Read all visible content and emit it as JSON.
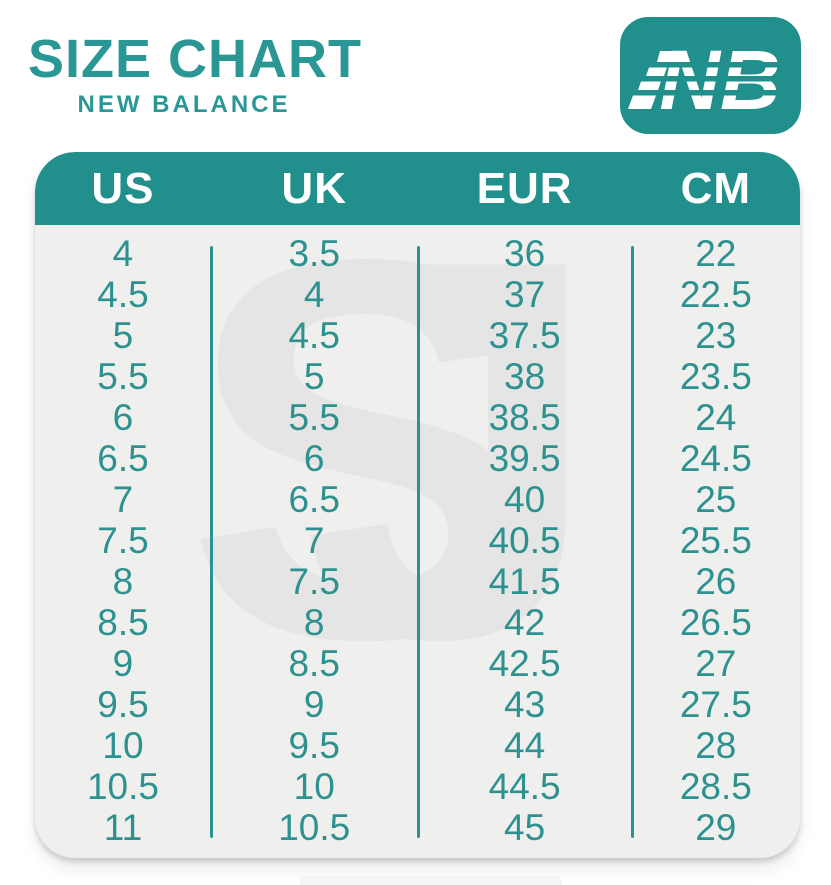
{
  "header": {
    "title": "SIZE CHART",
    "subtitle": "NEW BALANCE"
  },
  "logo": {
    "text": "NB"
  },
  "watermark": {
    "text": "SJ"
  },
  "colors": {
    "teal": "#21908d",
    "teal_text": "#2d928f",
    "title": "#2a9795",
    "table_bg": "#efefee",
    "header_text": "#ffffff",
    "watermark": "#e4e5e4"
  },
  "chart_data": {
    "type": "table",
    "title": "SIZE CHART",
    "subtitle": "NEW BALANCE",
    "columns": [
      "US",
      "UK",
      "EUR",
      "CM"
    ],
    "rows": [
      [
        "4",
        "3.5",
        "36",
        "22"
      ],
      [
        "4.5",
        "4",
        "37",
        "22.5"
      ],
      [
        "5",
        "4.5",
        "37.5",
        "23"
      ],
      [
        "5.5",
        "5",
        "38",
        "23.5"
      ],
      [
        "6",
        "5.5",
        "38.5",
        "24"
      ],
      [
        "6.5",
        "6",
        "39.5",
        "24.5"
      ],
      [
        "7",
        "6.5",
        "40",
        "25"
      ],
      [
        "7.5",
        "7",
        "40.5",
        "25.5"
      ],
      [
        "8",
        "7.5",
        "41.5",
        "26"
      ],
      [
        "8.5",
        "8",
        "42",
        "26.5"
      ],
      [
        "9",
        "8.5",
        "42.5",
        "27"
      ],
      [
        "9.5",
        "9",
        "43",
        "27.5"
      ],
      [
        "10",
        "9.5",
        "44",
        "28"
      ],
      [
        "10.5",
        "10",
        "44.5",
        "28.5"
      ],
      [
        "11",
        "10.5",
        "45",
        "29"
      ]
    ]
  }
}
